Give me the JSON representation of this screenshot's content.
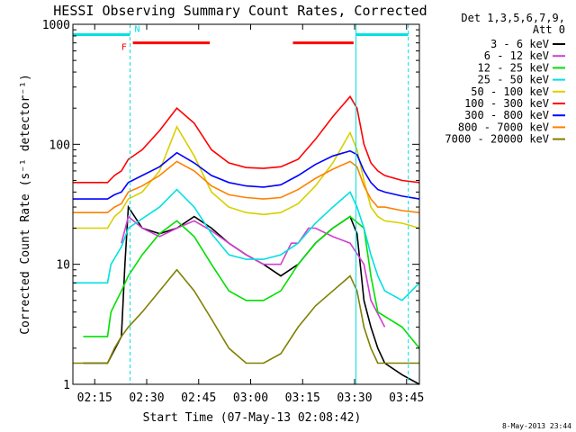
{
  "chart_data": {
    "type": "line",
    "title": "HESSI Observing Summary Count Rates, Corrected",
    "xlabel": "Start Time (07-May-13 02:08:42)",
    "ylabel": "Corrected Count Rate (s⁻¹ detector⁻¹)",
    "yscale": "log",
    "ylim": [
      1,
      1000
    ],
    "xlim_minutes": [
      0,
      100
    ],
    "x_ticks": [
      {
        "label": "02:15",
        "min": 6.3
      },
      {
        "label": "02:30",
        "min": 21.3
      },
      {
        "label": "02:45",
        "min": 36.3
      },
      {
        "label": "03:00",
        "min": 51.3
      },
      {
        "label": "03:15",
        "min": 66.3
      },
      {
        "label": "03:30",
        "min": 81.3
      },
      {
        "label": "03:45",
        "min": 96.3
      }
    ],
    "y_ticks": [
      1,
      10,
      100,
      1000
    ],
    "legend_header": [
      "Det 1,3,5,6,7,9,",
      "Att 0"
    ],
    "legend_position": "right",
    "series": [
      {
        "name": "3 - 6 keV",
        "color": "#000000",
        "x": [
          3,
          10,
          14,
          15,
          16,
          20,
          25,
          30,
          35,
          40,
          45,
          50,
          55,
          60,
          65,
          70,
          75,
          80,
          82,
          84,
          86,
          88,
          90,
          95,
          100
        ],
        "y": [
          1.5,
          1.5,
          2.5,
          10,
          30,
          20,
          18,
          20,
          25,
          20,
          15,
          12,
          10,
          8,
          10,
          15,
          20,
          25,
          18,
          5,
          3,
          2,
          1.5,
          1.2,
          1.0
        ]
      },
      {
        "name": "6 - 12 keV",
        "color": "#d040d0",
        "x": [
          14,
          16,
          20,
          25,
          30,
          35,
          40,
          45,
          50,
          55,
          60,
          63,
          65,
          68,
          70,
          75,
          80,
          84,
          86,
          90
        ],
        "y": [
          15,
          25,
          20,
          17,
          20,
          23,
          19,
          15,
          12,
          10,
          10,
          15,
          15,
          20,
          20,
          17,
          15,
          10,
          5,
          3
        ]
      },
      {
        "name": "12 - 25 keV",
        "color": "#00e000",
        "x": [
          3,
          10,
          11,
          14,
          16,
          20,
          25,
          30,
          35,
          40,
          45,
          50,
          55,
          60,
          65,
          70,
          75,
          80,
          84,
          86,
          88,
          95,
          100
        ],
        "y": [
          2.5,
          2.5,
          4,
          6,
          8,
          12,
          18,
          23,
          17,
          10,
          6,
          5,
          5,
          6,
          10,
          15,
          20,
          25,
          20,
          8,
          4,
          3,
          2
        ]
      },
      {
        "name": "25 - 50 keV",
        "color": "#00e0e0",
        "x": [
          0,
          10,
          11,
          14,
          16,
          20,
          25,
          30,
          35,
          40,
          45,
          50,
          55,
          60,
          65,
          70,
          75,
          80,
          82,
          84,
          86,
          88,
          90,
          95,
          100
        ],
        "y": [
          7,
          7,
          10,
          14,
          20,
          24,
          30,
          42,
          30,
          18,
          12,
          11,
          11,
          12,
          15,
          22,
          30,
          40,
          30,
          20,
          12,
          8,
          6,
          5,
          7
        ]
      },
      {
        "name": "50 - 100 keV",
        "color": "#d8d000",
        "x": [
          0,
          10,
          12,
          14,
          16,
          20,
          25,
          30,
          35,
          40,
          45,
          50,
          55,
          60,
          65,
          70,
          75,
          80,
          82,
          84,
          86,
          88,
          90,
          95,
          100
        ],
        "y": [
          20,
          20,
          25,
          28,
          35,
          40,
          60,
          140,
          80,
          40,
          30,
          27,
          26,
          27,
          32,
          45,
          70,
          125,
          90,
          50,
          30,
          25,
          23,
          22,
          20
        ]
      },
      {
        "name": "100 - 300 keV",
        "color": "#ff0000",
        "x": [
          0,
          10,
          12,
          14,
          16,
          20,
          25,
          30,
          35,
          40,
          45,
          50,
          55,
          60,
          65,
          70,
          75,
          80,
          82,
          84,
          86,
          88,
          90,
          95,
          100
        ],
        "y": [
          48,
          48,
          55,
          60,
          75,
          90,
          130,
          200,
          150,
          90,
          70,
          64,
          63,
          65,
          75,
          110,
          170,
          250,
          200,
          100,
          70,
          60,
          55,
          50,
          48
        ]
      },
      {
        "name": "300 - 800 keV",
        "color": "#0000ff",
        "x": [
          0,
          10,
          12,
          14,
          16,
          20,
          25,
          30,
          35,
          40,
          45,
          50,
          55,
          60,
          65,
          70,
          75,
          80,
          82,
          84,
          86,
          88,
          90,
          95,
          100
        ],
        "y": [
          35,
          35,
          38,
          40,
          48,
          55,
          65,
          85,
          70,
          55,
          48,
          45,
          44,
          46,
          55,
          68,
          80,
          88,
          82,
          60,
          48,
          42,
          40,
          37,
          35
        ]
      },
      {
        "name": "800 - 7000 keV",
        "color": "#ff8000",
        "x": [
          0,
          10,
          12,
          14,
          16,
          20,
          25,
          30,
          35,
          40,
          45,
          50,
          55,
          60,
          65,
          70,
          75,
          80,
          82,
          84,
          86,
          88,
          90,
          95,
          100
        ],
        "y": [
          27,
          27,
          30,
          32,
          40,
          45,
          55,
          72,
          60,
          45,
          38,
          36,
          35,
          36,
          42,
          52,
          62,
          72,
          65,
          45,
          35,
          30,
          30,
          28,
          27
        ]
      },
      {
        "name": "7000 - 20000 keV",
        "color": "#808000",
        "x": [
          0,
          10,
          12,
          14,
          16,
          20,
          25,
          30,
          35,
          40,
          45,
          50,
          55,
          60,
          65,
          70,
          75,
          80,
          82,
          84,
          86,
          88,
          90,
          95,
          100
        ],
        "y": [
          1.5,
          1.5,
          2,
          2.5,
          3,
          4,
          6,
          9,
          6,
          3.5,
          2,
          1.5,
          1.5,
          1.8,
          3,
          4.5,
          6,
          8,
          6,
          3,
          2,
          1.5,
          1.5,
          1.5,
          1.5
        ]
      }
    ],
    "annotations": {
      "vertical_lines": [
        {
          "min": 16.5,
          "style": "dashed",
          "color": "#00e0e0"
        },
        {
          "min": 81.7,
          "style": "solid",
          "color": "#00e0e0"
        },
        {
          "min": 96.8,
          "style": "dashed",
          "color": "#00e0e0"
        }
      ],
      "status_bars": [
        {
          "color": "#00e0e0",
          "from": 0,
          "to": 16.5,
          "level": 820
        },
        {
          "color": "#ff0000",
          "from": 17.3,
          "to": 39.5,
          "level": 700
        },
        {
          "color": "#ff0000",
          "from": 63.5,
          "to": 81.0,
          "level": 700
        },
        {
          "color": "#00e0e0",
          "from": 81.7,
          "to": 96.8,
          "level": 820
        }
      ],
      "flags": [
        {
          "text": "F",
          "min": 14.0,
          "level": 610,
          "color": "#ff0000"
        },
        {
          "text": "N",
          "min": 17.8,
          "level": 860,
          "color": "#00e0e0"
        }
      ]
    }
  },
  "footer": {
    "timestamp": "8-May-2013 23:44"
  }
}
